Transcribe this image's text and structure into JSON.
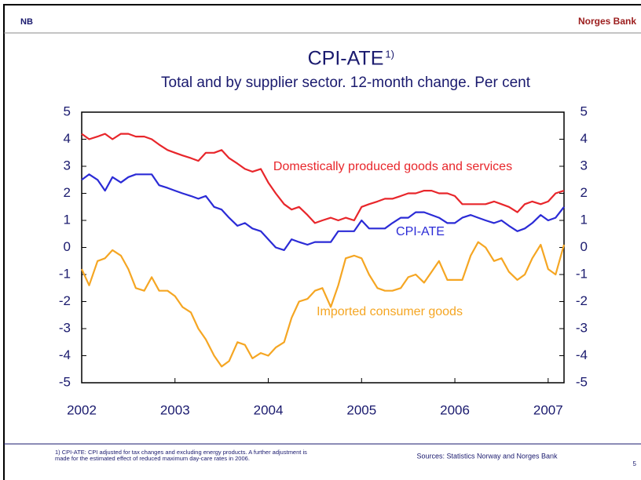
{
  "header": {
    "logo": "NB",
    "bank": "Norges Bank"
  },
  "chart_data": {
    "type": "line",
    "title": "CPI-ATE",
    "title_footnote_mark": "1)",
    "subtitle": "Total and by supplier sector. 12-month change. Per cent",
    "x": [
      2002.0,
      2002.08,
      2002.17,
      2002.25,
      2002.33,
      2002.42,
      2002.5,
      2002.58,
      2002.67,
      2002.75,
      2002.83,
      2002.92,
      2003.0,
      2003.08,
      2003.17,
      2003.25,
      2003.33,
      2003.42,
      2003.5,
      2003.58,
      2003.67,
      2003.75,
      2003.83,
      2003.92,
      2004.0,
      2004.08,
      2004.17,
      2004.25,
      2004.33,
      2004.42,
      2004.5,
      2004.58,
      2004.67,
      2004.75,
      2004.83,
      2004.92,
      2005.0,
      2005.08,
      2005.17,
      2005.25,
      2005.33,
      2005.42,
      2005.5,
      2005.58,
      2005.67,
      2005.75,
      2005.83,
      2005.92,
      2006.0,
      2006.08,
      2006.17,
      2006.25,
      2006.33,
      2006.42,
      2006.5,
      2006.58,
      2006.67,
      2006.75,
      2006.83,
      2006.92,
      2007.0,
      2007.08,
      2007.17
    ],
    "series": [
      {
        "name": "Domestically produced goods and services",
        "color": "#e8262b",
        "values": [
          4.2,
          4.0,
          4.1,
          4.2,
          4.0,
          4.2,
          4.2,
          4.1,
          4.1,
          4.0,
          3.8,
          3.6,
          3.5,
          3.4,
          3.3,
          3.2,
          3.5,
          3.5,
          3.6,
          3.3,
          3.1,
          2.9,
          2.8,
          2.9,
          2.4,
          2.0,
          1.6,
          1.4,
          1.5,
          1.2,
          0.9,
          1.0,
          1.1,
          1.0,
          1.1,
          1.0,
          1.5,
          1.6,
          1.7,
          1.8,
          1.8,
          1.9,
          2.0,
          2.0,
          2.1,
          2.1,
          2.0,
          2.0,
          1.9,
          1.6,
          1.6,
          1.6,
          1.6,
          1.7,
          1.6,
          1.5,
          1.3,
          1.6,
          1.7,
          1.6,
          1.7,
          2.0,
          2.1
        ]
      },
      {
        "name": "CPI-ATE",
        "color": "#2b2bd6",
        "values": [
          2.5,
          2.7,
          2.5,
          2.1,
          2.6,
          2.4,
          2.6,
          2.7,
          2.7,
          2.7,
          2.3,
          2.2,
          2.1,
          2.0,
          1.9,
          1.8,
          1.9,
          1.5,
          1.4,
          1.1,
          0.8,
          0.9,
          0.7,
          0.6,
          0.3,
          0.0,
          -0.1,
          0.3,
          0.2,
          0.1,
          0.2,
          0.2,
          0.2,
          0.6,
          0.6,
          0.6,
          1.0,
          0.7,
          0.7,
          0.7,
          0.9,
          1.1,
          1.1,
          1.3,
          1.3,
          1.2,
          1.1,
          0.9,
          0.9,
          1.1,
          1.2,
          1.1,
          1.0,
          0.9,
          1.0,
          0.8,
          0.6,
          0.7,
          0.9,
          1.2,
          1.0,
          1.1,
          1.5
        ]
      },
      {
        "name": "Imported consumer goods",
        "color": "#f5a623",
        "values": [
          -0.8,
          -1.4,
          -0.5,
          -0.4,
          -0.1,
          -0.3,
          -0.8,
          -1.5,
          -1.6,
          -1.1,
          -1.6,
          -1.6,
          -1.8,
          -2.2,
          -2.4,
          -3.0,
          -3.4,
          -4.0,
          -4.4,
          -4.2,
          -3.5,
          -3.6,
          -4.1,
          -3.9,
          -4.0,
          -3.7,
          -3.5,
          -2.6,
          -2.0,
          -1.9,
          -1.6,
          -1.5,
          -2.2,
          -1.4,
          -0.4,
          -0.3,
          -0.4,
          -1.0,
          -1.5,
          -1.6,
          -1.6,
          -1.5,
          -1.1,
          -1.0,
          -1.3,
          -0.9,
          -0.5,
          -1.2,
          -1.2,
          -1.2,
          -0.3,
          0.2,
          0.0,
          -0.5,
          -0.4,
          -0.9,
          -1.2,
          -1.0,
          -0.4,
          0.1,
          -0.8,
          -1.0,
          0.1
        ]
      }
    ],
    "xlim": [
      2002,
      2007.17
    ],
    "xticks": [
      2002,
      2003,
      2004,
      2005,
      2006,
      2007
    ],
    "ylim": [
      -5,
      5
    ],
    "yticks": [
      -5,
      -4,
      -3,
      -2,
      -1,
      0,
      1,
      2,
      3,
      4,
      5
    ],
    "y2lim": [
      -5,
      5
    ],
    "y2ticks": [
      -5,
      -4,
      -3,
      -2,
      -1,
      0,
      1,
      2,
      3,
      4,
      5
    ]
  },
  "footer": {
    "footnote": "1) CPI-ATE: CPI adjusted for tax changes and excluding energy products. A further adjustment is made for the estimated effect of reduced maximum day-care rates in 2006.",
    "sources": "Sources: Statistics Norway and Norges Bank",
    "page": "5"
  }
}
